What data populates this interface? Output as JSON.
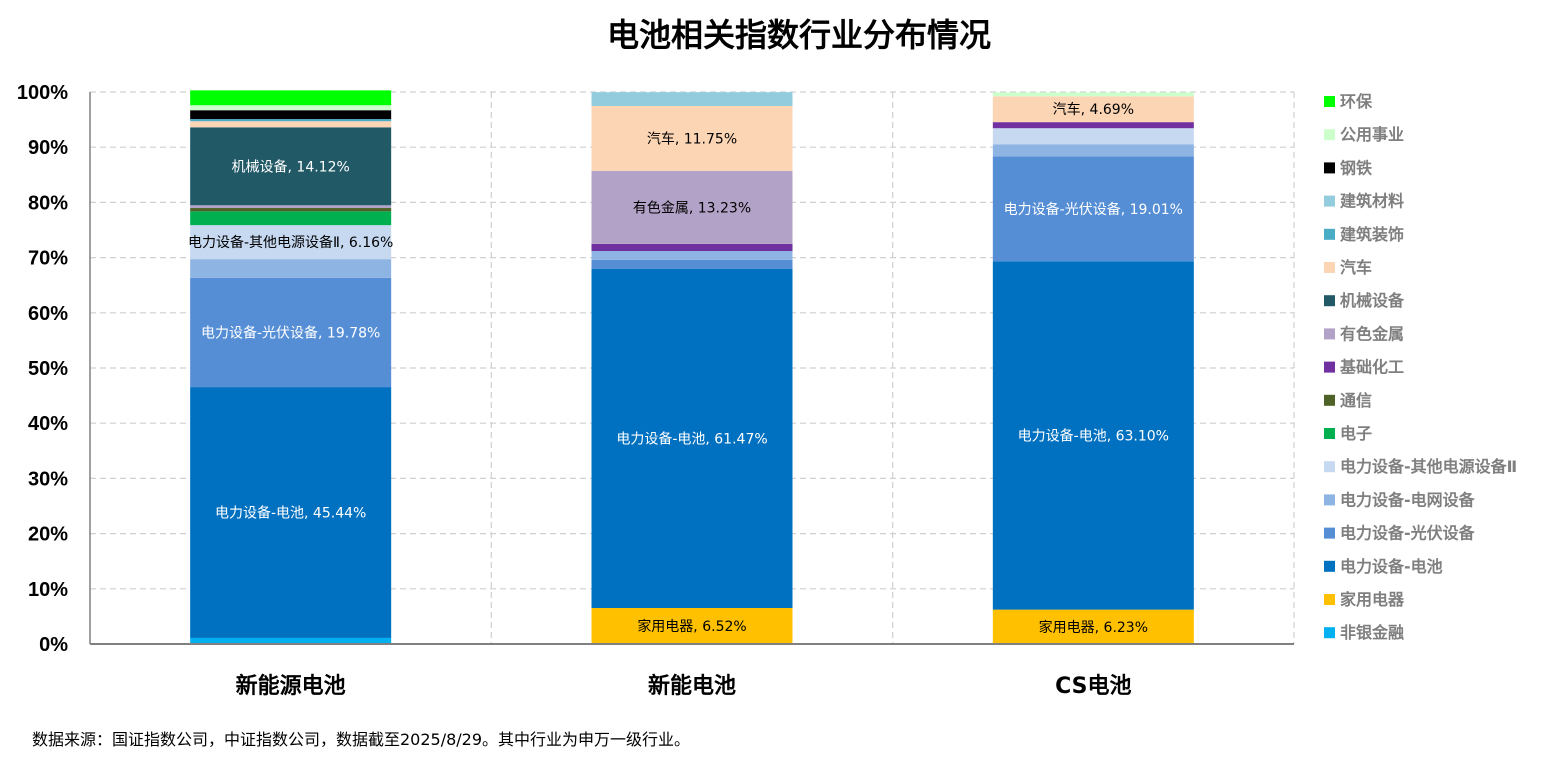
{
  "source_note": "数据来源：国证指数公司，中证指数公司，数据截至2025/8/29。其中行业为申万一级行业。",
  "chart_data": {
    "type": "bar",
    "stacked": true,
    "title": "电池相关指数行业分布情况",
    "xlabel": "",
    "ylabel": "",
    "ylim": [
      0,
      100
    ],
    "y_ticks": [
      "0%",
      "10%",
      "20%",
      "30%",
      "40%",
      "50%",
      "60%",
      "70%",
      "80%",
      "90%",
      "100%"
    ],
    "grid": true,
    "legend_position": "right",
    "categories": [
      "新能源电池",
      "新能电池",
      "CS电池"
    ],
    "series": [
      {
        "name": "非银金融",
        "color": "#00b0f0",
        "values": [
          1.1,
          0,
          0
        ],
        "labels": [
          false,
          false,
          false
        ]
      },
      {
        "name": "家用电器",
        "color": "#ffc000",
        "values": [
          0,
          6.52,
          6.23
        ],
        "labels": [
          false,
          true,
          true
        ],
        "label_color": "#000000"
      },
      {
        "name": "电力设备-电池",
        "color": "#0070c0",
        "values": [
          45.44,
          61.47,
          63.1
        ],
        "labels": [
          true,
          true,
          true
        ],
        "label_color": "#ffffff"
      },
      {
        "name": "电力设备-光伏设备",
        "color": "#558ed5",
        "values": [
          19.78,
          1.6,
          19.01
        ],
        "labels": [
          true,
          false,
          true
        ],
        "label_color": "#ffffff"
      },
      {
        "name": "电力设备-电网设备",
        "color": "#8eb4e3",
        "values": [
          3.4,
          1.6,
          2.2
        ],
        "labels": [
          false,
          false,
          false
        ]
      },
      {
        "name": "电力设备-其他电源设备Ⅱ",
        "color": "#c6d9f1",
        "values": [
          6.16,
          0,
          2.9
        ],
        "labels": [
          true,
          false,
          false
        ],
        "label_color": "#000000"
      },
      {
        "name": "电子",
        "color": "#00b050",
        "values": [
          2.5,
          0,
          0
        ],
        "labels": [
          false,
          false,
          false
        ]
      },
      {
        "name": "通信",
        "color": "#4f6228",
        "values": [
          0.6,
          0,
          0
        ],
        "labels": [
          false,
          false,
          false
        ]
      },
      {
        "name": "基础化工",
        "color": "#7030a0",
        "values": [
          0,
          1.3,
          1.1
        ],
        "labels": [
          false,
          false,
          false
        ]
      },
      {
        "name": "有色金属",
        "color": "#b3a2c7",
        "values": [
          0.5,
          13.23,
          0
        ],
        "labels": [
          false,
          true,
          false
        ],
        "label_color": "#000000"
      },
      {
        "name": "机械设备",
        "color": "#215967",
        "values": [
          14.12,
          0,
          0
        ],
        "labels": [
          true,
          false,
          false
        ],
        "label_color": "#ffffff"
      },
      {
        "name": "汽车",
        "color": "#fcd5b5",
        "values": [
          1.1,
          11.75,
          4.69
        ],
        "labels": [
          false,
          true,
          true
        ],
        "label_color": "#000000"
      },
      {
        "name": "建筑装饰",
        "color": "#4bacc6",
        "values": [
          0.4,
          0,
          0
        ],
        "labels": [
          false,
          false,
          false
        ]
      },
      {
        "name": "建筑材料",
        "color": "#93cddd",
        "values": [
          0,
          2.5,
          0
        ],
        "labels": [
          false,
          false,
          false
        ]
      },
      {
        "name": "钢铁",
        "color": "#000000",
        "values": [
          1.6,
          0,
          0
        ],
        "labels": [
          false,
          false,
          false
        ]
      },
      {
        "name": "公用事业",
        "color": "#ccffcc",
        "values": [
          0.9,
          0,
          0.7
        ],
        "labels": [
          false,
          false,
          false
        ]
      },
      {
        "name": "环保",
        "color": "#00ff00",
        "values": [
          2.7,
          0,
          0
        ],
        "labels": [
          false,
          false,
          false
        ]
      }
    ],
    "legend_order": [
      "环保",
      "公用事业",
      "钢铁",
      "建筑材料",
      "建筑装饰",
      "汽车",
      "机械设备",
      "有色金属",
      "基础化工",
      "通信",
      "电子",
      "电力设备-其他电源设备Ⅱ",
      "电力设备-电网设备",
      "电力设备-光伏设备",
      "电力设备-电池",
      "家用电器",
      "非银金融"
    ]
  }
}
